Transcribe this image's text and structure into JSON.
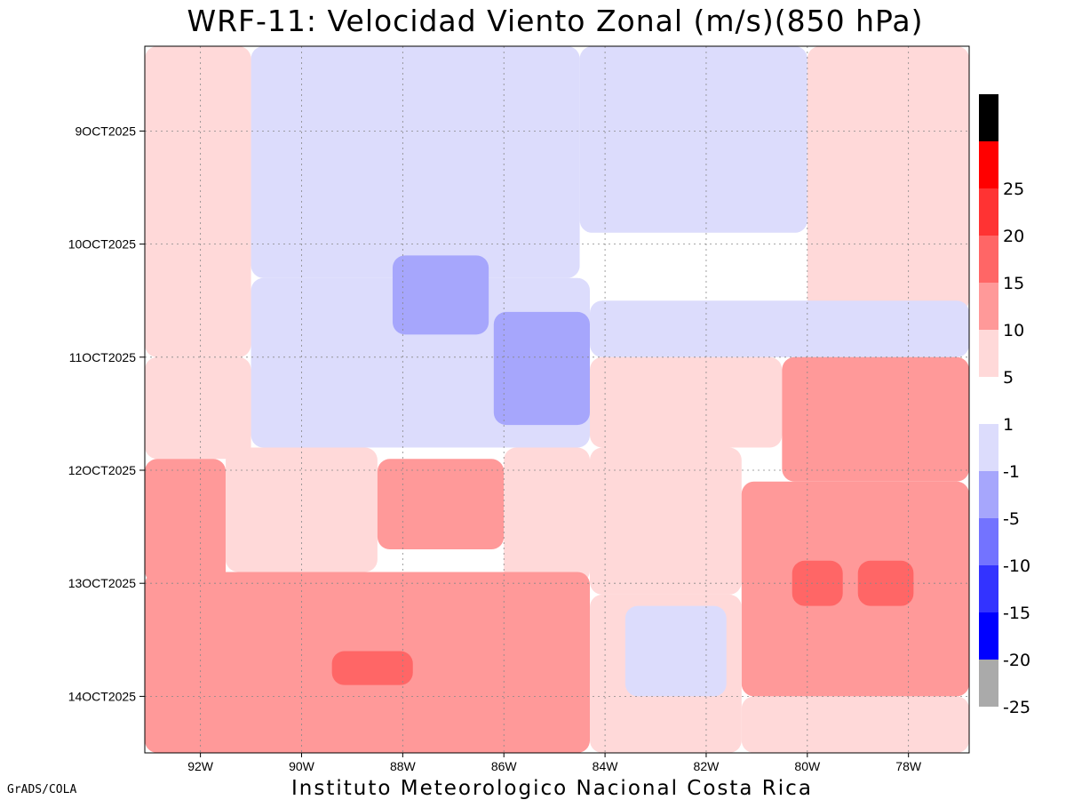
{
  "chart_data": {
    "type": "heatmap",
    "title": "WRF-11: Velocidad  Viento Zonal (m/s)(850 hPa)",
    "variable": "Viento Zonal (m/s)",
    "level": "850 hPa",
    "x_tick_labels": [
      "92W",
      "90W",
      "88W",
      "86W",
      "84W",
      "82W",
      "80W",
      "78W"
    ],
    "x_tick_values": [
      -92,
      -90,
      -88,
      -86,
      -84,
      -82,
      -80,
      -78
    ],
    "xlim": [
      -93.1,
      -76.8
    ],
    "y_tick_labels": [
      "9OCT2025",
      "10OCT2025",
      "11OCT2025",
      "12OCT2025",
      "13OCT2025",
      "14OCT2025"
    ],
    "y_tick_values": [
      9,
      10,
      11,
      12,
      13,
      14
    ],
    "ylim": [
      8.25,
      14.5
    ],
    "grid": true,
    "colorbar": {
      "orientation": "vertical",
      "position": "right",
      "levels": [
        {
          "label": "",
          "color": "#000000"
        },
        {
          "label": "25",
          "color": "#ff0000"
        },
        {
          "label": "20",
          "color": "#ff3333"
        },
        {
          "label": "15",
          "color": "#ff6666"
        },
        {
          "label": "10",
          "color": "#ff9999"
        },
        {
          "label": "5",
          "color": "#ffd9d9"
        },
        {
          "label": "1",
          "color": "#ffffff"
        },
        {
          "label": "-1",
          "color": "#dcdcfc"
        },
        {
          "label": "-5",
          "color": "#a6a6fc"
        },
        {
          "label": "-10",
          "color": "#7373ff"
        },
        {
          "label": "-15",
          "color": "#3333ff"
        },
        {
          "label": "-20",
          "color": "#0000ff"
        },
        {
          "label": "-25",
          "color": "#aaaaaa"
        }
      ]
    },
    "regions": [
      {
        "lon_from": -93.1,
        "lon_to": -91.0,
        "day_from": 8.25,
        "day_to": 11.0,
        "value": 2
      },
      {
        "lon_from": -91.0,
        "lon_to": -84.5,
        "day_from": 8.25,
        "day_to": 10.3,
        "value": -3
      },
      {
        "lon_from": -84.5,
        "lon_to": -80.0,
        "day_from": 8.25,
        "day_to": 9.9,
        "value": -3
      },
      {
        "lon_from": -80.0,
        "lon_to": -76.8,
        "day_from": 8.25,
        "day_to": 10.6,
        "value": 2
      },
      {
        "lon_from": -84.5,
        "lon_to": -80.0,
        "day_from": 9.9,
        "day_to": 10.5,
        "value": 0
      },
      {
        "lon_from": -91.0,
        "lon_to": -84.3,
        "day_from": 10.3,
        "day_to": 11.8,
        "value": -4
      },
      {
        "lon_from": -88.2,
        "lon_to": -86.3,
        "day_from": 10.1,
        "day_to": 10.8,
        "value": -7
      },
      {
        "lon_from": -86.2,
        "lon_to": -84.3,
        "day_from": 10.6,
        "day_to": 11.6,
        "value": -9
      },
      {
        "lon_from": -84.3,
        "lon_to": -76.8,
        "day_from": 10.5,
        "day_to": 11.0,
        "value": -2
      },
      {
        "lon_from": -84.3,
        "lon_to": -80.5,
        "day_from": 11.0,
        "day_to": 11.8,
        "value": 3
      },
      {
        "lon_from": -80.5,
        "lon_to": -76.8,
        "day_from": 11.0,
        "day_to": 12.1,
        "value": 7
      },
      {
        "lon_from": -93.1,
        "lon_to": -91.0,
        "day_from": 11.0,
        "day_to": 11.9,
        "value": 2
      },
      {
        "lon_from": -93.1,
        "lon_to": -91.5,
        "day_from": 11.9,
        "day_to": 13.0,
        "value": 7
      },
      {
        "lon_from": -91.5,
        "lon_to": -88.5,
        "day_from": 11.8,
        "day_to": 12.9,
        "value": 2
      },
      {
        "lon_from": -88.5,
        "lon_to": -86.0,
        "day_from": 11.9,
        "day_to": 12.7,
        "value": 7
      },
      {
        "lon_from": -86.0,
        "lon_to": -84.3,
        "day_from": 11.8,
        "day_to": 13.0,
        "value": 3
      },
      {
        "lon_from": -84.3,
        "lon_to": -81.3,
        "day_from": 11.8,
        "day_to": 13.1,
        "value": 3
      },
      {
        "lon_from": -81.3,
        "lon_to": -76.8,
        "day_from": 12.1,
        "day_to": 14.0,
        "value": 7
      },
      {
        "lon_from": -80.3,
        "lon_to": -79.3,
        "day_from": 12.8,
        "day_to": 13.2,
        "value": 12
      },
      {
        "lon_from": -79.0,
        "lon_to": -77.9,
        "day_from": 12.8,
        "day_to": 13.2,
        "value": 12
      },
      {
        "lon_from": -93.1,
        "lon_to": -84.3,
        "day_from": 12.9,
        "day_to": 14.5,
        "value": 7
      },
      {
        "lon_from": -89.4,
        "lon_to": -87.8,
        "day_from": 13.6,
        "day_to": 13.9,
        "value": 12
      },
      {
        "lon_from": -84.3,
        "lon_to": -81.3,
        "day_from": 13.1,
        "day_to": 14.5,
        "value": 3
      },
      {
        "lon_from": -83.6,
        "lon_to": -81.6,
        "day_from": 13.2,
        "day_to": 14.0,
        "value": -3
      },
      {
        "lon_from": -81.3,
        "lon_to": -76.8,
        "day_from": 14.0,
        "day_to": 14.5,
        "value": 4
      }
    ]
  },
  "labels": {
    "credit": "GrADS/COLA",
    "footer": "Instituto Meteorologico Nacional Costa Rica"
  }
}
